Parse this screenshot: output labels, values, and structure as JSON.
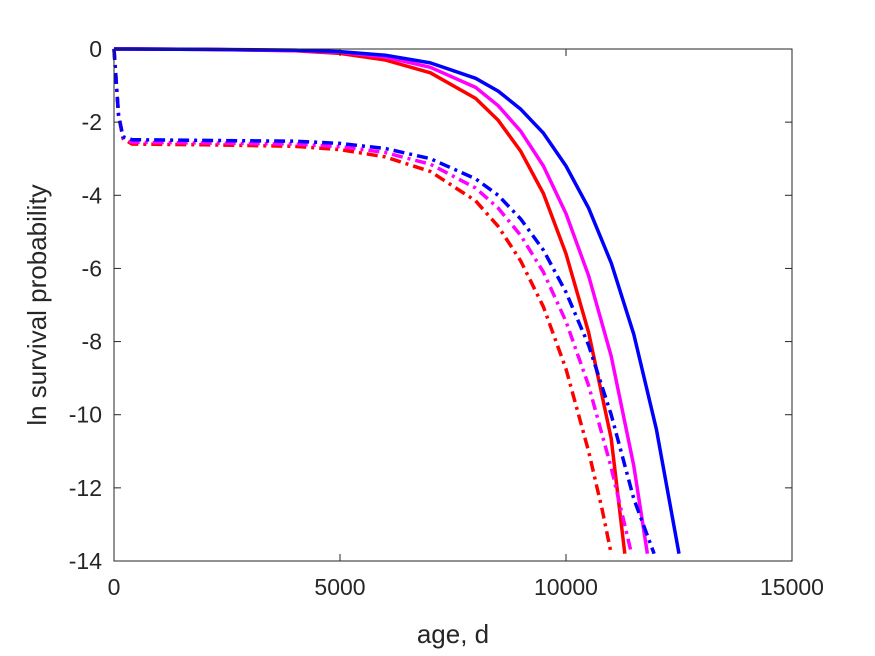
{
  "chart_data": {
    "type": "line",
    "xlabel": "age, d",
    "ylabel": "ln survival probability",
    "xlim": [
      0,
      15000
    ],
    "ylim": [
      -14,
      0
    ],
    "xticks": [
      "0",
      "5000",
      "10000",
      "15000"
    ],
    "yticks": [
      "0",
      "-2",
      "-4",
      "-6",
      "-8",
      "-10",
      "-12",
      "-14"
    ],
    "grid": false,
    "legend": "none",
    "series": [
      {
        "color": "#ff0000",
        "style": "solid",
        "x": [
          0,
          2000,
          4000,
          5000,
          6000,
          7000,
          8000,
          8500,
          9000,
          9500,
          10000,
          10500,
          11000,
          11300
        ],
        "y": [
          0,
          -0.01,
          -0.05,
          -0.12,
          -0.3,
          -0.65,
          -1.35,
          -1.95,
          -2.8,
          -3.95,
          -5.6,
          -7.75,
          -10.65,
          -13.8
        ]
      },
      {
        "color": "#ff00ff",
        "style": "solid",
        "x": [
          0,
          2000,
          4000,
          5000,
          6000,
          7000,
          8000,
          8500,
          9000,
          9500,
          10000,
          10500,
          11000,
          11500,
          11800
        ],
        "y": [
          0,
          -0.01,
          -0.04,
          -0.09,
          -0.22,
          -0.5,
          -1.05,
          -1.55,
          -2.25,
          -3.2,
          -4.5,
          -6.2,
          -8.4,
          -11.4,
          -13.8
        ]
      },
      {
        "color": "#0000ff",
        "style": "solid",
        "x": [
          0,
          2000,
          4000,
          5000,
          6000,
          7000,
          8000,
          8500,
          9000,
          9500,
          10000,
          10500,
          11000,
          11500,
          12000,
          12500
        ],
        "y": [
          0,
          -0.01,
          -0.03,
          -0.07,
          -0.17,
          -0.38,
          -0.8,
          -1.15,
          -1.65,
          -2.3,
          -3.2,
          -4.35,
          -5.85,
          -7.8,
          -10.4,
          -13.8
        ]
      },
      {
        "color": "#ff0000",
        "style": "dashdot",
        "x": [
          0,
          100,
          200,
          400,
          2000,
          4000,
          5000,
          6000,
          7000,
          8000,
          8500,
          9000,
          9500,
          10000,
          10500,
          10800,
          11000
        ],
        "y": [
          0,
          -1.8,
          -2.45,
          -2.6,
          -2.62,
          -2.66,
          -2.75,
          -2.95,
          -3.35,
          -4.15,
          -4.85,
          -5.8,
          -7.05,
          -8.75,
          -11.0,
          -12.6,
          -13.8
        ]
      },
      {
        "color": "#ff00ff",
        "style": "dashdot",
        "x": [
          0,
          100,
          200,
          400,
          2000,
          4000,
          5000,
          6000,
          7000,
          8000,
          8500,
          9000,
          9500,
          10000,
          10500,
          11000,
          11450
        ],
        "y": [
          0,
          -1.8,
          -2.42,
          -2.55,
          -2.57,
          -2.6,
          -2.67,
          -2.83,
          -3.15,
          -3.8,
          -4.35,
          -5.1,
          -6.1,
          -7.45,
          -9.2,
          -11.45,
          -13.8
        ]
      },
      {
        "color": "#0000ff",
        "style": "dashdot",
        "x": [
          0,
          100,
          200,
          400,
          2000,
          4000,
          5000,
          6000,
          7000,
          8000,
          8500,
          9000,
          9500,
          10000,
          10500,
          11000,
          11500,
          11950
        ],
        "y": [
          0,
          -1.8,
          -2.4,
          -2.48,
          -2.5,
          -2.52,
          -2.58,
          -2.72,
          -3.0,
          -3.55,
          -4.0,
          -4.65,
          -5.5,
          -6.65,
          -8.1,
          -10.0,
          -12.3,
          -13.8
        ]
      }
    ]
  }
}
